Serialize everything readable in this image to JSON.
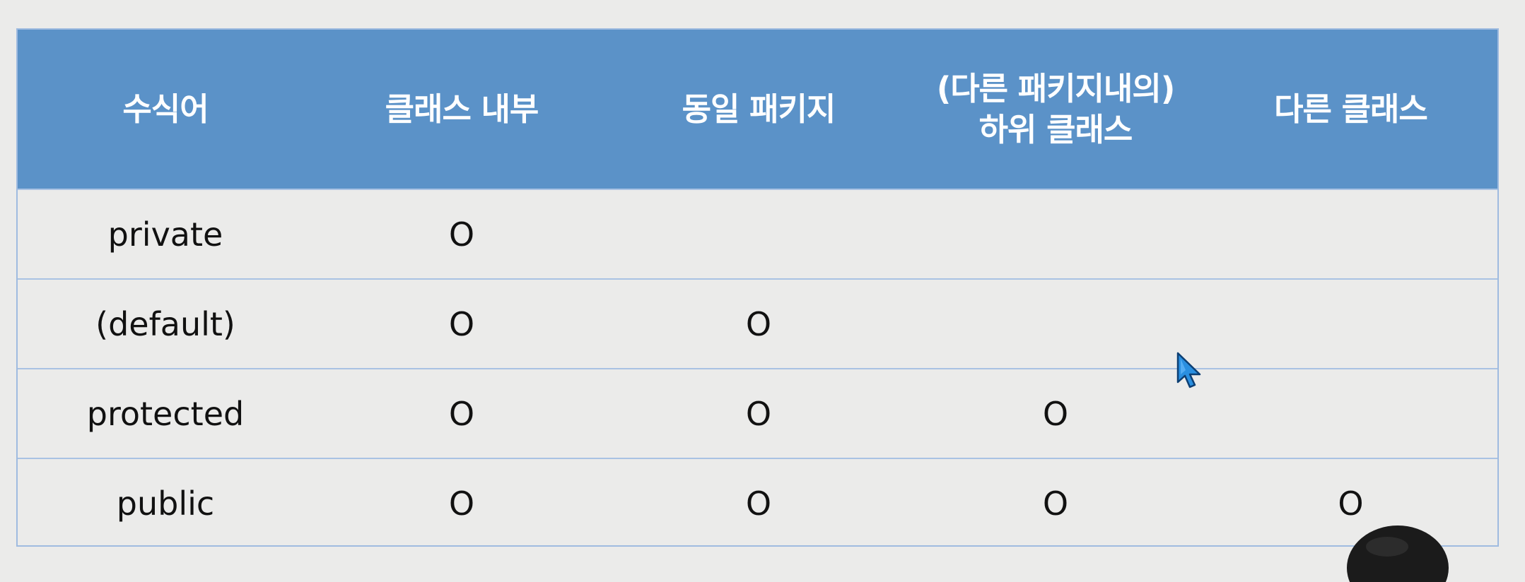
{
  "table": {
    "headers": [
      "수식어",
      "클래스 내부",
      "동일 패키지",
      "(다른 패키지내의)\n하위 클래스",
      "다른 클래스"
    ],
    "rows": [
      {
        "modifier": "private",
        "cells": [
          "O",
          "",
          "",
          ""
        ]
      },
      {
        "modifier": "(default)",
        "cells": [
          "O",
          "O",
          "",
          ""
        ]
      },
      {
        "modifier": "protected",
        "cells": [
          "O",
          "O",
          "O",
          ""
        ]
      },
      {
        "modifier": "public",
        "cells": [
          "O",
          "O",
          "O",
          "O"
        ]
      }
    ]
  },
  "colors": {
    "header_bg": "#5b92c8",
    "header_text": "#ffffff",
    "body_bg": "#ebebea",
    "grid_line": "#a9c2e3",
    "cursor": "#2a8fe0"
  },
  "icons": {
    "cursor": "mouse-pointer-icon"
  }
}
